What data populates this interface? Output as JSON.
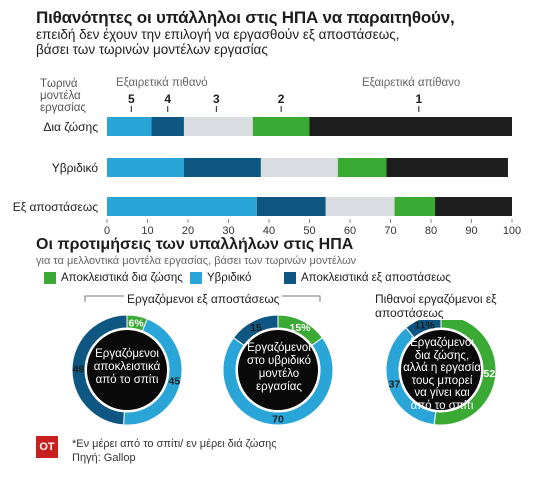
{
  "title": "Πιθανότητες οι υπάλληλοι στις ΗΠΑ να παραιτηθούν,",
  "subtitle": [
    "επειδή δεν έχουν την επιλογή να εργασθούν εξ αποστάσεως,",
    "βάσει των τωρινών μοντέλων εργασίας"
  ],
  "ylabel_lines": [
    "Τωρινά",
    "μοντέλα",
    "εργασίας"
  ],
  "scale_left": "Εξαιρετικά πιθανό",
  "scale_right": "Εξαιρετικά απίθανο",
  "colors": {
    "c5": "#2aa5d8",
    "c4": "#0e5782",
    "c3": "#d9dde2",
    "c2": "#3aaa35",
    "c1": "#1e1e1e"
  },
  "chart_data": [
    {
      "type": "bar",
      "stacked": true,
      "orientation": "horizontal",
      "categories": [
        "Δια ζώσης",
        "Υβριδικό",
        "Εξ αποστάσεως"
      ],
      "series": [
        {
          "name": "5",
          "color": "#2aa5d8",
          "values": [
            11,
            19,
            37
          ]
        },
        {
          "name": "4",
          "color": "#0e5782",
          "values": [
            8,
            19,
            17
          ]
        },
        {
          "name": "3",
          "color": "#d9dde2",
          "values": [
            17,
            19,
            17
          ]
        },
        {
          "name": "2",
          "color": "#3aaa35",
          "values": [
            14,
            12,
            10
          ]
        },
        {
          "name": "1",
          "color": "#1e1e1e",
          "values": [
            50,
            30,
            19
          ]
        }
      ],
      "scale_label_positions": [
        {
          "label": "5",
          "x": 6
        },
        {
          "label": "4",
          "x": 15
        },
        {
          "label": "3",
          "x": 27
        },
        {
          "label": "2",
          "x": 43
        },
        {
          "label": "1",
          "x": 77
        }
      ],
      "xlim": [
        0,
        100
      ],
      "xticks": [
        0,
        10,
        20,
        30,
        40,
        50,
        60,
        70,
        80,
        90,
        100
      ]
    },
    {
      "type": "pie",
      "donut": true,
      "title": "Οι προτιμήσεις των υπαλλήλων στις ΗΠΑ",
      "subtitle": "για τα μελλοντικά μοντέλα εργασίας, βάσει των τωρινών μοντέλων",
      "legend": [
        {
          "name": "Αποκλειστικά δια ζώσης",
          "color": "#3aaa35"
        },
        {
          "name": "Υβριδικό",
          "color": "#2aa5d8"
        },
        {
          "name": "Αποκλειστικά εξ αποστάσεως",
          "color": "#0e5782"
        }
      ],
      "group_labels": [
        "Εργαζόμενοι εξ αποστάσεως",
        "Πιθανοί εργαζόμενοι εξ αποστάσεως"
      ],
      "donuts": [
        {
          "center_text": [
            "Εργαζόμενοι",
            "αποκλειστικά",
            "από το σπίτι"
          ],
          "slices": [
            {
              "key": "green",
              "value": 6,
              "label": "6%"
            },
            {
              "key": "light",
              "value": 45,
              "label": "45"
            },
            {
              "key": "dark",
              "value": 49,
              "label": "49"
            }
          ]
        },
        {
          "center_text": [
            "Εργαζόμενοι",
            "στο υβριδικό",
            "μοντέλο",
            "εργασίας"
          ],
          "slices": [
            {
              "key": "green",
              "value": 15,
              "label": "15%"
            },
            {
              "key": "light",
              "value": 70,
              "label": "70"
            },
            {
              "key": "dark",
              "value": 15,
              "label": "15"
            }
          ]
        },
        {
          "center_text": [
            "Εργαζόμενοι",
            "δια ζώσης,",
            "αλλά η εργασία",
            "τους μπορεί",
            "να γίνει και",
            "από το σπίτι"
          ],
          "slices": [
            {
              "key": "green",
              "value": 52,
              "label": "52"
            },
            {
              "key": "light",
              "value": 37,
              "label": "37"
            },
            {
              "key": "dark",
              "value": 11,
              "label": "11%"
            }
          ]
        }
      ]
    }
  ],
  "footer": {
    "logo": "ΟΤ",
    "note": "*Εν μέρει από το σπίτι/ εν μέρει διά ζώσης",
    "source": "Πηγή: Gallop"
  }
}
